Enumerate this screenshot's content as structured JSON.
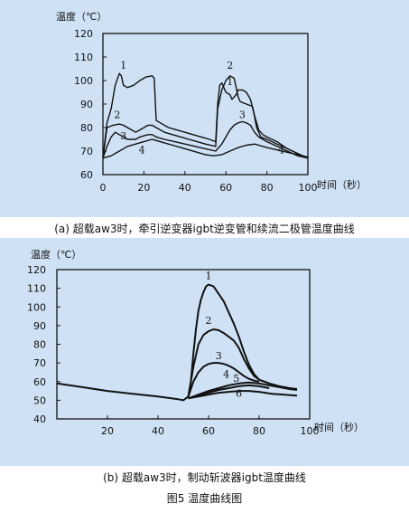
{
  "figure_title": "图5 温度曲线图",
  "chart_data": [
    {
      "type": "line",
      "ylabel": "温度（℃）",
      "xlabel": "时间（秒）",
      "caption": "(a) 超载aw3时，牵引逆变器igbt逆变管和续流二极管温度曲线",
      "xlim": [
        0,
        100
      ],
      "ylim": [
        60,
        120
      ],
      "xticks": [
        0,
        20,
        40,
        60,
        80,
        100
      ],
      "yticks": [
        60,
        70,
        80,
        90,
        100,
        110,
        120
      ],
      "grid": false,
      "series": [
        {
          "name": "1",
          "points": [
            [
              0,
              67
            ],
            [
              2,
              82
            ],
            [
              4,
              88
            ],
            [
              6,
              98
            ],
            [
              8,
              103
            ],
            [
              9,
              102
            ],
            [
              10,
              98
            ],
            [
              12,
              97
            ],
            [
              15,
              98
            ],
            [
              18,
              100
            ],
            [
              21,
              101.5
            ],
            [
              24,
              102
            ],
            [
              25,
              101
            ],
            [
              26,
              83
            ],
            [
              28,
              82
            ],
            [
              32,
              80
            ],
            [
              36,
              79
            ],
            [
              40,
              78
            ],
            [
              44,
              77
            ],
            [
              48,
              76
            ],
            [
              52,
              75
            ],
            [
              55,
              74
            ],
            [
              56,
              90
            ],
            [
              57,
              98
            ],
            [
              58,
              99
            ],
            [
              59,
              97
            ],
            [
              60,
              95
            ],
            [
              62,
              94
            ],
            [
              63,
              92
            ],
            [
              64,
              93
            ],
            [
              65,
              94
            ],
            [
              66,
              96
            ],
            [
              68,
              96
            ],
            [
              70,
              95
            ],
            [
              72,
              92
            ],
            [
              74,
              85
            ],
            [
              76,
              79
            ],
            [
              78,
              77
            ],
            [
              80,
              76
            ],
            [
              85,
              74
            ],
            [
              90,
              71
            ],
            [
              95,
              69
            ],
            [
              100,
              67
            ]
          ]
        },
        {
          "name": "2",
          "points": [
            [
              0,
              67
            ],
            [
              2,
              80
            ],
            [
              5,
              81
            ],
            [
              8,
              81.5
            ],
            [
              10,
              81
            ],
            [
              12,
              80
            ],
            [
              14,
              79
            ],
            [
              16,
              78
            ],
            [
              18,
              79
            ],
            [
              20,
              80
            ],
            [
              22,
              81
            ],
            [
              24,
              81
            ],
            [
              26,
              80
            ],
            [
              30,
              78
            ],
            [
              34,
              77
            ],
            [
              38,
              76
            ],
            [
              42,
              75
            ],
            [
              46,
              74
            ],
            [
              50,
              73
            ],
            [
              55,
              72
            ],
            [
              56,
              88
            ],
            [
              58,
              96
            ],
            [
              60,
              100
            ],
            [
              62,
              102
            ],
            [
              64,
              101
            ],
            [
              65,
              97
            ],
            [
              66,
              93
            ],
            [
              67,
              91
            ],
            [
              70,
              90
            ],
            [
              73,
              89
            ],
            [
              75,
              80
            ],
            [
              77,
              76
            ],
            [
              80,
              75
            ],
            [
              85,
              73
            ],
            [
              90,
              71
            ],
            [
              95,
              69
            ],
            [
              100,
              67
            ]
          ]
        },
        {
          "name": "3",
          "points": [
            [
              0,
              67
            ],
            [
              2,
              72
            ],
            [
              4,
              76
            ],
            [
              6,
              78
            ],
            [
              8,
              77
            ],
            [
              10,
              76
            ],
            [
              12,
              75
            ],
            [
              14,
              75
            ],
            [
              16,
              75
            ],
            [
              18,
              76
            ],
            [
              20,
              76.5
            ],
            [
              22,
              77
            ],
            [
              24,
              77
            ],
            [
              26,
              76
            ],
            [
              30,
              75
            ],
            [
              35,
              74
            ],
            [
              40,
              73
            ],
            [
              45,
              72
            ],
            [
              50,
              71
            ],
            [
              55,
              70
            ],
            [
              56,
              71
            ],
            [
              58,
              73
            ],
            [
              60,
              76
            ],
            [
              62,
              79
            ],
            [
              64,
              81
            ],
            [
              66,
              82
            ],
            [
              68,
              82.5
            ],
            [
              70,
              82
            ],
            [
              72,
              81
            ],
            [
              74,
              78
            ],
            [
              76,
              76
            ],
            [
              80,
              74
            ],
            [
              85,
              72
            ],
            [
              90,
              70
            ],
            [
              95,
              68
            ],
            [
              100,
              67
            ]
          ]
        },
        {
          "name": "4",
          "points": [
            [
              0,
              67
            ],
            [
              4,
              68
            ],
            [
              8,
              70
            ],
            [
              12,
              72
            ],
            [
              16,
              73
            ],
            [
              20,
              74
            ],
            [
              24,
              75
            ],
            [
              26,
              74.5
            ],
            [
              30,
              73.5
            ],
            [
              34,
              72.5
            ],
            [
              38,
              71.5
            ],
            [
              42,
              70.5
            ],
            [
              46,
              69.5
            ],
            [
              50,
              68.5
            ],
            [
              54,
              68
            ],
            [
              58,
              68.5
            ],
            [
              62,
              70
            ],
            [
              66,
              71.5
            ],
            [
              70,
              72.5
            ],
            [
              74,
              73
            ],
            [
              76,
              72.5
            ],
            [
              80,
              71.5
            ],
            [
              85,
              70.5
            ],
            [
              90,
              69.5
            ],
            [
              95,
              68.5
            ],
            [
              100,
              67.5
            ]
          ]
        }
      ]
    },
    {
      "type": "line",
      "ylabel": "温度（℃）",
      "xlabel": "时间（秒）",
      "caption": "(b) 超载aw3时，制动斩波器igbt温度曲线",
      "xlim": [
        0,
        100
      ],
      "ylim": [
        40,
        120
      ],
      "xticks": [
        20,
        40,
        60,
        80,
        100
      ],
      "yticks": [
        40,
        50,
        60,
        70,
        80,
        90,
        100,
        110,
        120
      ],
      "grid": false,
      "series": [
        {
          "name": "1",
          "points": [
            [
              0,
              59
            ],
            [
              10,
              57
            ],
            [
              20,
              55
            ],
            [
              30,
              53.5
            ],
            [
              40,
              52
            ],
            [
              48,
              50.5
            ],
            [
              50,
              50
            ],
            [
              52,
              52
            ],
            [
              53,
              60
            ],
            [
              54,
              75
            ],
            [
              55,
              88
            ],
            [
              56,
              98
            ],
            [
              57,
              104
            ],
            [
              58,
              108
            ],
            [
              59,
              111
            ],
            [
              60,
              112
            ],
            [
              62,
              111
            ],
            [
              64,
              107
            ],
            [
              66,
              103
            ],
            [
              68,
              97
            ],
            [
              70,
              91
            ],
            [
              72,
              84
            ],
            [
              74,
              76
            ],
            [
              76,
              69
            ],
            [
              78,
              64
            ],
            [
              80,
              61
            ],
            [
              84,
              59
            ],
            [
              88,
              57.5
            ],
            [
              92,
              56.5
            ],
            [
              95,
              56
            ]
          ]
        },
        {
          "name": "2",
          "points": [
            [
              52,
              52
            ],
            [
              54,
              68
            ],
            [
              56,
              80
            ],
            [
              58,
              85
            ],
            [
              60,
              87
            ],
            [
              62,
              88
            ],
            [
              64,
              87.5
            ],
            [
              66,
              86
            ],
            [
              68,
              84
            ],
            [
              70,
              82
            ],
            [
              72,
              78
            ],
            [
              74,
              72
            ],
            [
              76,
              67
            ],
            [
              78,
              63
            ],
            [
              80,
              61
            ],
            [
              84,
              59
            ]
          ]
        },
        {
          "name": "3",
          "points": [
            [
              52,
              52
            ],
            [
              54,
              60
            ],
            [
              56,
              65
            ],
            [
              58,
              68
            ],
            [
              60,
              69.5
            ],
            [
              62,
              70
            ],
            [
              64,
              70
            ],
            [
              66,
              69.5
            ],
            [
              68,
              68.5
            ],
            [
              70,
              67
            ],
            [
              72,
              65
            ],
            [
              74,
              63
            ],
            [
              76,
              61.5
            ],
            [
              78,
              60.5
            ],
            [
              80,
              60
            ]
          ]
        },
        {
          "name": "4",
          "points": [
            [
              52,
              51
            ],
            [
              56,
              53
            ],
            [
              60,
              55
            ],
            [
              64,
              56.5
            ],
            [
              68,
              58
            ],
            [
              72,
              59
            ],
            [
              76,
              59.5
            ],
            [
              80,
              59
            ],
            [
              84,
              58
            ],
            [
              88,
              57
            ],
            [
              92,
              56
            ],
            [
              95,
              55.5
            ]
          ]
        },
        {
          "name": "5",
          "points": [
            [
              52,
              51
            ],
            [
              56,
              52.5
            ],
            [
              60,
              54
            ],
            [
              64,
              55.5
            ],
            [
              68,
              56.5
            ],
            [
              72,
              57.5
            ],
            [
              76,
              58
            ],
            [
              80,
              57.5
            ],
            [
              84,
              56.5
            ]
          ]
        },
        {
          "name": "6",
          "points": [
            [
              52,
              51
            ],
            [
              56,
              52
            ],
            [
              60,
              53
            ],
            [
              64,
              54
            ],
            [
              68,
              54.5
            ],
            [
              72,
              55
            ],
            [
              76,
              55
            ],
            [
              80,
              54.5
            ],
            [
              85,
              53.5
            ],
            [
              90,
              53
            ],
            [
              95,
              52.5
            ]
          ]
        }
      ]
    }
  ]
}
